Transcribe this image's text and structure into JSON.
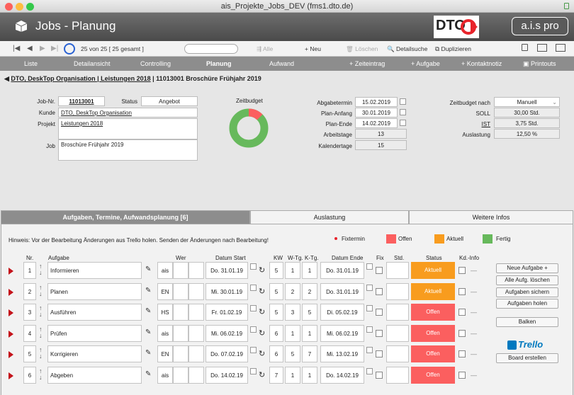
{
  "window": {
    "title": "ais_Projekte_Jobs_DEV (fms1.dto.de)"
  },
  "header": {
    "app_title": "Jobs - Planung",
    "logo_text": "DTO",
    "brand": "a.i.s pro"
  },
  "toolbar": {
    "record_count": "25 von 25  [ 25 gesamt ]",
    "alle": "Alle",
    "neu": "Neu",
    "loeschen": "Löschen",
    "detailsuche": "Detailsuche",
    "duplizieren": "Duplizieren"
  },
  "nav": {
    "liste": "Liste",
    "detail": "Detailansicht",
    "controlling": "Controlling",
    "planung": "Planung",
    "aufwand": "Aufwand",
    "zeiteintrag": "+ Zeiteintrag",
    "aufgabe": "+ Aufgabe",
    "kontaktnotiz": "+ Kontaktnotiz",
    "printouts": "Printouts"
  },
  "breadcrumb": {
    "link": "DTO, DeskTop Organisation | Leistungen 2018",
    "rest": " | 11013001 Broschüre Frühjahr 2019"
  },
  "job": {
    "jobnr_label": "Job-Nr.",
    "jobnr": "11013001",
    "status_label": "Status",
    "status": "Angebot",
    "kunde_label": "Kunde",
    "kunde": "DTO, DeskTop Organisation",
    "projekt_label": "Projekt",
    "projekt": "Leistungen 2018",
    "job_label": "Job",
    "job": "Broschüre Frühjahr 2019"
  },
  "zeitbudget": {
    "label": "Zeitbudget",
    "used_fraction": 0.125
  },
  "dates": {
    "abgabe_label": "Abgabetermin",
    "abgabe": "15.02.2019",
    "anfang_label": "Plan-Anfang",
    "anfang": "30.01.2019",
    "ende_label": "Plan-Ende",
    "ende": "14.02.2019",
    "arbeitstage_label": "Arbeitstage",
    "arbeitstage": "13",
    "kalendertage_label": "Kalendertage",
    "kalendertage": "15"
  },
  "budget": {
    "nach_label": "Zeitbudget nach",
    "nach": "Manuell",
    "soll_label": "SOLL",
    "soll": "30,00 Std.",
    "ist_label": "IST",
    "ist": "3,75 Std.",
    "auslastung_label": "Auslastung",
    "auslastung": "12,50 %"
  },
  "tabs": {
    "t1": "Aufgaben, Termine, Aufwandsplanung [6]",
    "t2": "Auslastung",
    "t3": "Weitere Infos"
  },
  "hint": "Hinweis: Vor der Bearbeitung Änderungen aus Trello holen. Senden der Änderungen nach Bearbeitung!",
  "legend": {
    "fixtermin": "Fixtermin",
    "offen": "Offen",
    "aktuell": "Aktuell",
    "fertig": "Fertig"
  },
  "colors": {
    "offen": "#fb5f5f",
    "aktuell": "#f89c1e",
    "fertig": "#67b95c"
  },
  "cols": {
    "nr": "Nr.",
    "aufgabe": "Aufgabe",
    "wer": "Wer",
    "start": "Datum Start",
    "kw": "KW",
    "wtg": "W-Tg.",
    "ktg": "K-Tg.",
    "ende": "Datum Ende",
    "fix": "Fix",
    "std": "Std.",
    "status": "Status",
    "kd": "Kd.-Info"
  },
  "tasks": [
    {
      "nr": "1",
      "aufgabe": "Informieren",
      "wer": "ais",
      "start": "Do. 31.01.19",
      "kw": "5",
      "wtg": "1",
      "ktg": "1",
      "ende": "Do. 31.01.19",
      "status": "Aktuell"
    },
    {
      "nr": "2",
      "aufgabe": "Planen",
      "wer": "EN",
      "start": "Mi. 30.01.19",
      "kw": "5",
      "wtg": "2",
      "ktg": "2",
      "ende": "Do. 31.01.19",
      "status": "Aktuell"
    },
    {
      "nr": "3",
      "aufgabe": "Ausführen",
      "wer": "HS",
      "start": "Fr. 01.02.19",
      "kw": "5",
      "wtg": "3",
      "ktg": "5",
      "ende": "Di. 05.02.19",
      "status": "Offen"
    },
    {
      "nr": "4",
      "aufgabe": "Prüfen",
      "wer": "ais",
      "start": "Mi. 06.02.19",
      "kw": "6",
      "wtg": "1",
      "ktg": "1",
      "ende": "Mi. 06.02.19",
      "status": "Offen"
    },
    {
      "nr": "5",
      "aufgabe": "Korrigieren",
      "wer": "EN",
      "start": "Do. 07.02.19",
      "kw": "6",
      "wtg": "5",
      "ktg": "7",
      "ende": "Mi. 13.02.19",
      "status": "Offen"
    },
    {
      "nr": "6",
      "aufgabe": "Abgeben",
      "wer": "ais",
      "start": "Do. 14.02.19",
      "kw": "7",
      "wtg": "1",
      "ktg": "1",
      "ende": "Do. 14.02.19",
      "status": "Offen"
    }
  ],
  "side": {
    "neu": "Neue Aufgabe +",
    "loeschen": "Alle Aufg. löschen",
    "sichern": "Aufgaben sichern",
    "holen": "Aufgaben holen",
    "balken": "Balken",
    "trello": "Trello",
    "board": "Board erstellen"
  }
}
